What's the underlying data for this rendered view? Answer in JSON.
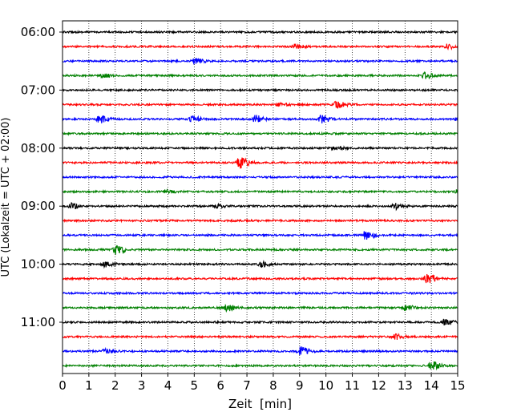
{
  "chart_data": {
    "type": "line",
    "title": "",
    "xlabel": "Zeit  [min]",
    "ylabel": "UTC (Lokalzeit = UTC + 02:00)",
    "xlim": [
      0,
      15
    ],
    "x_ticks": [
      0,
      1,
      2,
      3,
      4,
      5,
      6,
      7,
      8,
      9,
      10,
      11,
      12,
      13,
      14,
      15
    ],
    "x_tick_labels": [
      "0",
      "1",
      "2",
      "3",
      "4",
      "5",
      "6",
      "7",
      "8",
      "9",
      "10",
      "11",
      "12",
      "13",
      "14",
      "15"
    ],
    "x_grid": true,
    "grid_style": "dotted",
    "trace_start_minute": 360,
    "trace_interval_minutes": 15,
    "y_tick_labels": [
      "06:00",
      "07:00",
      "08:00",
      "09:00",
      "10:00",
      "11:00"
    ],
    "color_cycle": [
      "#000000",
      "#ff0000",
      "#0000ff",
      "#008000"
    ],
    "events": [
      [],
      [
        {
          "t": 8.8,
          "a": 2.5
        },
        {
          "t": 14.6,
          "a": 2.5
        }
      ],
      [
        {
          "t": 5.0,
          "a": 3.5
        }
      ],
      [
        {
          "t": 1.5,
          "a": 2.0
        },
        {
          "t": 13.7,
          "a": 3.5
        }
      ],
      [],
      [
        {
          "t": 8.2,
          "a": 2.0
        },
        {
          "t": 10.4,
          "a": 4.5
        }
      ],
      [
        {
          "t": 1.4,
          "a": 4.5
        },
        {
          "t": 4.9,
          "a": 3.5
        },
        {
          "t": 7.3,
          "a": 4.5
        },
        {
          "t": 9.8,
          "a": 4.5
        },
        {
          "t": 15.0,
          "a": 3.5
        }
      ],
      [],
      [
        {
          "t": 10.3,
          "a": 2.5
        }
      ],
      [
        {
          "t": 6.7,
          "a": 6.5
        }
      ],
      [],
      [
        {
          "t": 3.9,
          "a": 2.0
        },
        {
          "t": 15.0,
          "a": 2.5
        }
      ],
      [
        {
          "t": 0.3,
          "a": 3.5
        },
        {
          "t": 5.8,
          "a": 2.0
        },
        {
          "t": 12.6,
          "a": 3.5
        }
      ],
      [],
      [
        {
          "t": 11.5,
          "a": 6.5
        }
      ],
      [
        {
          "t": 2.0,
          "a": 5.5
        }
      ],
      [
        {
          "t": 1.6,
          "a": 3.0
        },
        {
          "t": 7.5,
          "a": 3.0
        }
      ],
      [
        {
          "t": 13.8,
          "a": 6.5
        }
      ],
      [],
      [
        {
          "t": 6.2,
          "a": 4.0
        },
        {
          "t": 13.0,
          "a": 3.0
        }
      ],
      [
        {
          "t": 14.5,
          "a": 3.5
        }
      ],
      [
        {
          "t": 12.6,
          "a": 3.0
        }
      ],
      [
        {
          "t": 1.6,
          "a": 2.5
        },
        {
          "t": 9.0,
          "a": 5.5
        }
      ],
      [
        {
          "t": 14.0,
          "a": 4.5
        }
      ]
    ]
  }
}
